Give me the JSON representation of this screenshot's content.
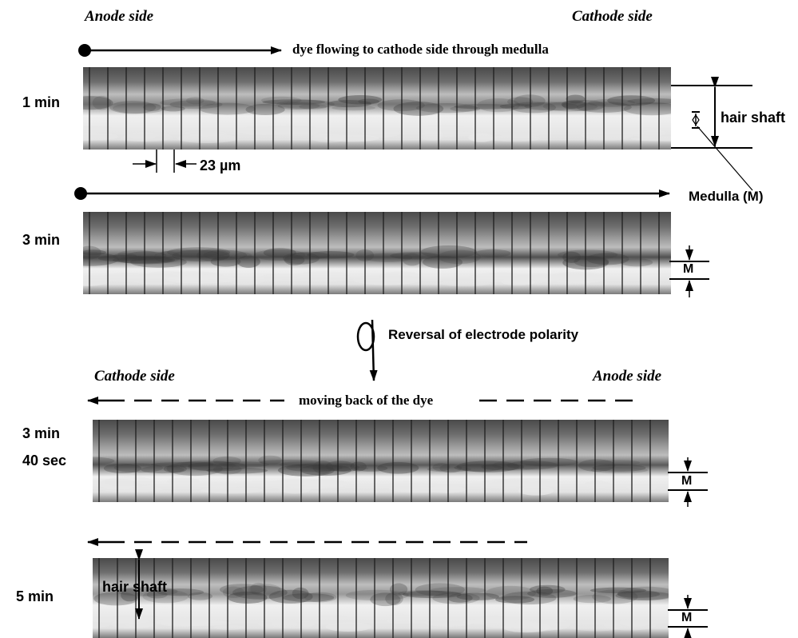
{
  "top_side_labels": {
    "left": "Anode side",
    "right": "Cathode side"
  },
  "bottom_side_labels": {
    "left": "Cathode side",
    "right": "Anode side"
  },
  "flow_caption": "dye flowing to cathode side through medulla",
  "back_caption": "moving back of the dye",
  "reversal_caption": "Reversal of electrode polarity",
  "panels": [
    {
      "time": [
        "1 min"
      ]
    },
    {
      "time": [
        "3 min"
      ]
    },
    {
      "time": [
        "3 min",
        "40 sec"
      ]
    },
    {
      "time": [
        "5 min"
      ]
    }
  ],
  "labels": {
    "hair_shaft": "hair shaft",
    "medulla": "Medulla (M)",
    "medulla_short": "M",
    "scale_bar": "23 µm"
  },
  "colors": {
    "panel_dark": "#3a3a3a",
    "panel_light": "#e8e8e8",
    "ink": "#000000"
  }
}
